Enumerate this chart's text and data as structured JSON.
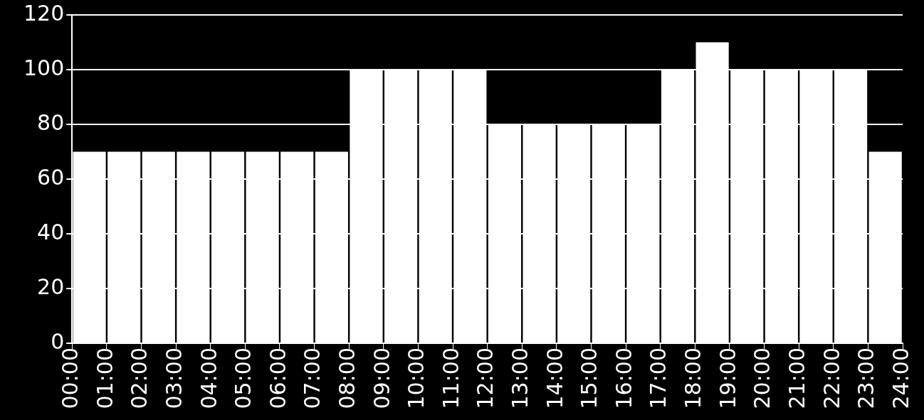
{
  "chart_data": {
    "type": "histogram",
    "bins": [
      0,
      1,
      2,
      3,
      4,
      5,
      6,
      7,
      8,
      9,
      10,
      11,
      12,
      13,
      14,
      15,
      16,
      17,
      18,
      19,
      20,
      21,
      22,
      23,
      24
    ],
    "values": [
      70,
      70,
      70,
      70,
      70,
      70,
      70,
      70,
      100,
      100,
      100,
      100,
      80,
      80,
      80,
      80,
      80,
      100,
      110,
      100,
      100,
      100,
      100,
      70
    ],
    "color": "#ffffff",
    "xlim": [
      0,
      24
    ],
    "xticks": [
      {
        "value": 0,
        "label": "00:00"
      },
      {
        "value": 1,
        "label": "01:00"
      },
      {
        "value": 2,
        "label": "02:00"
      },
      {
        "value": 3,
        "label": "03:00"
      },
      {
        "value": 4,
        "label": "04:00"
      },
      {
        "value": 5,
        "label": "05:00"
      },
      {
        "value": 6,
        "label": "06:00"
      },
      {
        "value": 7,
        "label": "07:00"
      },
      {
        "value": 8,
        "label": "08:00"
      },
      {
        "value": 9,
        "label": "09:00"
      },
      {
        "value": 10,
        "label": "10:00"
      },
      {
        "value": 11,
        "label": "11:00"
      },
      {
        "value": 12,
        "label": "12:00"
      },
      {
        "value": 13,
        "label": "13:00"
      },
      {
        "value": 14,
        "label": "14:00"
      },
      {
        "value": 15,
        "label": "15:00"
      },
      {
        "value": 16,
        "label": "16:00"
      },
      {
        "value": 17,
        "label": "17:00"
      },
      {
        "value": 18,
        "label": "18:00"
      },
      {
        "value": 19,
        "label": "19:00"
      },
      {
        "value": 20,
        "label": "20:00"
      },
      {
        "value": 21,
        "label": "21:00"
      },
      {
        "value": 22,
        "label": "22:00"
      },
      {
        "value": 23,
        "label": "23:00"
      },
      {
        "value": 24,
        "label": "24:00"
      }
    ],
    "ylim": [
      0,
      120
    ],
    "yticks": [
      0,
      20,
      40,
      60,
      80,
      100,
      120
    ],
    "grid": "y"
  }
}
